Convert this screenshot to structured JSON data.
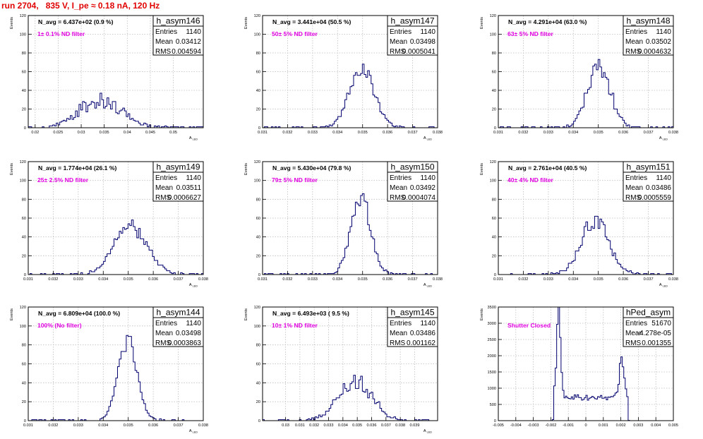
{
  "header": {
    "run_title": "run 2704,   835 V, I_pe ≈ 0.18 nA, 120 Hz"
  },
  "colors": {
    "histogram": "#00006e",
    "annotation": "#e000e0",
    "title": "#e00000",
    "grid": "#bfbfbf"
  },
  "chart_data": [
    {
      "type": "histogram",
      "name": "h_asym146",
      "navg": "N_avg = 6.437e+02 (0.9 %)",
      "filter": "1± 0.1% ND filter",
      "ylabel": "Events",
      "xlabel": "A_LED",
      "xlim": [
        0.0185,
        0.0565
      ],
      "ylim": [
        0,
        120
      ],
      "xticks": [
        "0.02",
        "0.025",
        "0.03",
        "0.035",
        "0.04",
        "0.045",
        "0.05"
      ],
      "xtick_values": [
        0.02,
        0.025,
        0.03,
        0.035,
        0.04,
        0.045,
        0.05
      ],
      "yticks": [
        "0",
        "20",
        "40",
        "60",
        "80",
        "100",
        "120"
      ],
      "stats": {
        "entries": "1140",
        "mean": "0.03412",
        "rms": "0.004594"
      },
      "shape": {
        "kind": "gauss",
        "mu": 0.03412,
        "sigma": 0.0046,
        "peak": 30,
        "noise": 0.32,
        "seed": 3,
        "bins": 100
      }
    },
    {
      "type": "histogram",
      "name": "h_asym147",
      "navg": "N_avg = 3.441e+04 (50.5 %)",
      "filter": "50± 5% ND filter",
      "ylabel": "Events",
      "xlabel": "A_LED",
      "xlim": [
        0.031,
        0.038
      ],
      "ylim": [
        0,
        120
      ],
      "xticks": [
        "0.031",
        "0.032",
        "0.033",
        "0.034",
        "0.035",
        "0.036",
        "0.037",
        "0.038"
      ],
      "xtick_values": [
        0.031,
        0.032,
        0.033,
        0.034,
        0.035,
        0.036,
        0.037,
        0.038
      ],
      "yticks": [
        "0",
        "20",
        "40",
        "60",
        "80",
        "100",
        "120"
      ],
      "stats": {
        "entries": "1140",
        "mean": "0.03498",
        "rms": "0.0005041"
      },
      "shape": {
        "kind": "gauss",
        "mu": 0.03498,
        "sigma": 0.0005,
        "peak": 63,
        "noise": 0.15,
        "seed": 7,
        "bins": 100
      }
    },
    {
      "type": "histogram",
      "name": "h_asym148",
      "navg": "N_avg = 4.291e+04 (63.0 %)",
      "filter": "63± 5% ND filter",
      "ylabel": "Events",
      "xlabel": "A_LED",
      "xlim": [
        0.031,
        0.038
      ],
      "ylim": [
        0,
        120
      ],
      "xticks": [
        "0.031",
        "0.032",
        "0.033",
        "0.034",
        "0.035",
        "0.036",
        "0.037",
        "0.038"
      ],
      "xtick_values": [
        0.031,
        0.032,
        0.033,
        0.034,
        0.035,
        0.036,
        0.037,
        0.038
      ],
      "yticks": [
        "0",
        "20",
        "40",
        "60",
        "80",
        "100",
        "120"
      ],
      "stats": {
        "entries": "1140",
        "mean": "0.03502",
        "rms": "0.0004632"
      },
      "shape": {
        "kind": "gauss",
        "mu": 0.03502,
        "sigma": 0.00046,
        "peak": 66,
        "noise": 0.17,
        "seed": 11,
        "bins": 100
      }
    },
    {
      "type": "histogram",
      "name": "h_asym149",
      "navg": "N_avg = 1.774e+04 (26.1 %)",
      "filter": "25± 2.5% ND filter",
      "ylabel": "Events",
      "xlabel": "A_LED",
      "xlim": [
        0.031,
        0.038
      ],
      "ylim": [
        0,
        120
      ],
      "xticks": [
        "0.031",
        "0.032",
        "0.033",
        "0.034",
        "0.035",
        "0.036",
        "0.037",
        "0.038"
      ],
      "xtick_values": [
        0.031,
        0.032,
        0.033,
        0.034,
        0.035,
        0.036,
        0.037,
        0.038
      ],
      "yticks": [
        "0",
        "20",
        "40",
        "60",
        "80",
        "100",
        "120"
      ],
      "stats": {
        "entries": "1140",
        "mean": "0.03511",
        "rms": "0.0006627"
      },
      "shape": {
        "kind": "gauss",
        "mu": 0.03511,
        "sigma": 0.00066,
        "peak": 50,
        "noise": 0.18,
        "seed": 19,
        "bins": 100
      }
    },
    {
      "type": "histogram",
      "name": "h_asym150",
      "navg": "N_avg = 5.430e+04 (79.8 %)",
      "filter": "79± 5% ND filter",
      "ylabel": "Events",
      "xlabel": "A_LED",
      "xlim": [
        0.031,
        0.038
      ],
      "ylim": [
        0,
        120
      ],
      "xticks": [
        "0.031",
        "0.032",
        "0.033",
        "0.034",
        "0.035",
        "0.036",
        "0.037",
        "0.038"
      ],
      "xtick_values": [
        0.031,
        0.032,
        0.033,
        0.034,
        0.035,
        0.036,
        0.037,
        0.038
      ],
      "yticks": [
        "0",
        "20",
        "40",
        "60",
        "80",
        "100",
        "120"
      ],
      "stats": {
        "entries": "1140",
        "mean": "0.03492",
        "rms": "0.0004074"
      },
      "shape": {
        "kind": "gauss",
        "mu": 0.03492,
        "sigma": 0.0004,
        "peak": 82,
        "noise": 0.13,
        "seed": 23,
        "bins": 100
      }
    },
    {
      "type": "histogram",
      "name": "h_asym151",
      "navg": "N_avg = 2.761e+04 (40.5 %)",
      "filter": "40± 4% ND filter",
      "ylabel": "Events",
      "xlabel": "A_LED",
      "xlim": [
        0.031,
        0.038
      ],
      "ylim": [
        0,
        120
      ],
      "xticks": [
        "0.031",
        "0.032",
        "0.033",
        "0.034",
        "0.035",
        "0.036",
        "0.037",
        "0.038"
      ],
      "xtick_values": [
        0.031,
        0.032,
        0.033,
        0.034,
        0.035,
        0.036,
        0.037,
        0.038
      ],
      "yticks": [
        "0",
        "20",
        "40",
        "60",
        "80",
        "100",
        "120"
      ],
      "stats": {
        "entries": "1140",
        "mean": "0.03486",
        "rms": "0.0005559"
      },
      "shape": {
        "kind": "gauss",
        "mu": 0.03486,
        "sigma": 0.00055,
        "peak": 58,
        "noise": 0.17,
        "seed": 29,
        "bins": 100
      }
    },
    {
      "type": "histogram",
      "name": "h_asym144",
      "navg": "N_avg = 6.809e+04 (100.0 %)",
      "filter": "100% (No filter)",
      "ylabel": "Events",
      "xlabel": "A_LED",
      "xlim": [
        0.031,
        0.038
      ],
      "ylim": [
        0,
        120
      ],
      "xticks": [
        "0.031",
        "0.032",
        "0.033",
        "0.034",
        "0.035",
        "0.036",
        "0.037",
        "0.038"
      ],
      "xtick_values": [
        0.031,
        0.032,
        0.033,
        0.034,
        0.035,
        0.036,
        0.037,
        0.038
      ],
      "yticks": [
        "0",
        "20",
        "40",
        "60",
        "80",
        "100",
        "120"
      ],
      "stats": {
        "entries": "1140",
        "mean": "0.03498",
        "rms": "0.0003863"
      },
      "shape": {
        "kind": "gauss",
        "mu": 0.03498,
        "sigma": 0.00038,
        "peak": 84,
        "noise": 0.12,
        "seed": 31,
        "bins": 100
      }
    },
    {
      "type": "histogram",
      "name": "h_asym145",
      "navg": "N_avg = 6.493e+03 ( 9.5 %)",
      "filter": "10± 1% ND filter",
      "ylabel": "Events",
      "xlabel": "A_LED",
      "xlim": [
        0.0284,
        0.0406
      ],
      "ylim": [
        0,
        120
      ],
      "xticks": [
        "0.03",
        "0.031",
        "0.032",
        "0.033",
        "0.034",
        "0.035",
        "0.036",
        "0.037",
        "0.038",
        "0.039"
      ],
      "xtick_values": [
        0.03,
        0.031,
        0.032,
        0.033,
        0.034,
        0.035,
        0.036,
        0.037,
        0.038,
        0.039
      ],
      "yticks": [
        "0",
        "20",
        "40",
        "60",
        "80",
        "100",
        "120"
      ],
      "stats": {
        "entries": "1140",
        "mean": "0.03486",
        "rms": "0.001162"
      },
      "shape": {
        "kind": "gauss",
        "mu": 0.03486,
        "sigma": 0.00116,
        "peak": 42,
        "noise": 0.22,
        "seed": 37,
        "bins": 100
      }
    },
    {
      "type": "histogram",
      "name": "hPed_asym",
      "navg": "",
      "filter": "Shutter Closed",
      "ylabel": "Events",
      "xlabel": "",
      "xlim": [
        -0.005,
        0.005
      ],
      "ylim": [
        0,
        3500
      ],
      "xticks": [
        "-0.005",
        "-0.004",
        "-0.003",
        "-0.002",
        "-0.001",
        "0",
        "0.001",
        "0.002",
        "0.003",
        "0.004",
        "0.005"
      ],
      "xtick_values": [
        -0.005,
        -0.004,
        -0.003,
        -0.002,
        -0.001,
        0,
        0.001,
        0.002,
        0.003,
        0.004,
        0.005
      ],
      "yticks": [
        "0",
        "500",
        "1000",
        "1500",
        "2000",
        "2500",
        "3000",
        "3500"
      ],
      "stats": {
        "entries": "51670",
        "mean": "-4.278e-05",
        "rms": "0.001355"
      },
      "shape": {
        "kind": "ped",
        "bins": 120,
        "seed": 41
      }
    }
  ]
}
